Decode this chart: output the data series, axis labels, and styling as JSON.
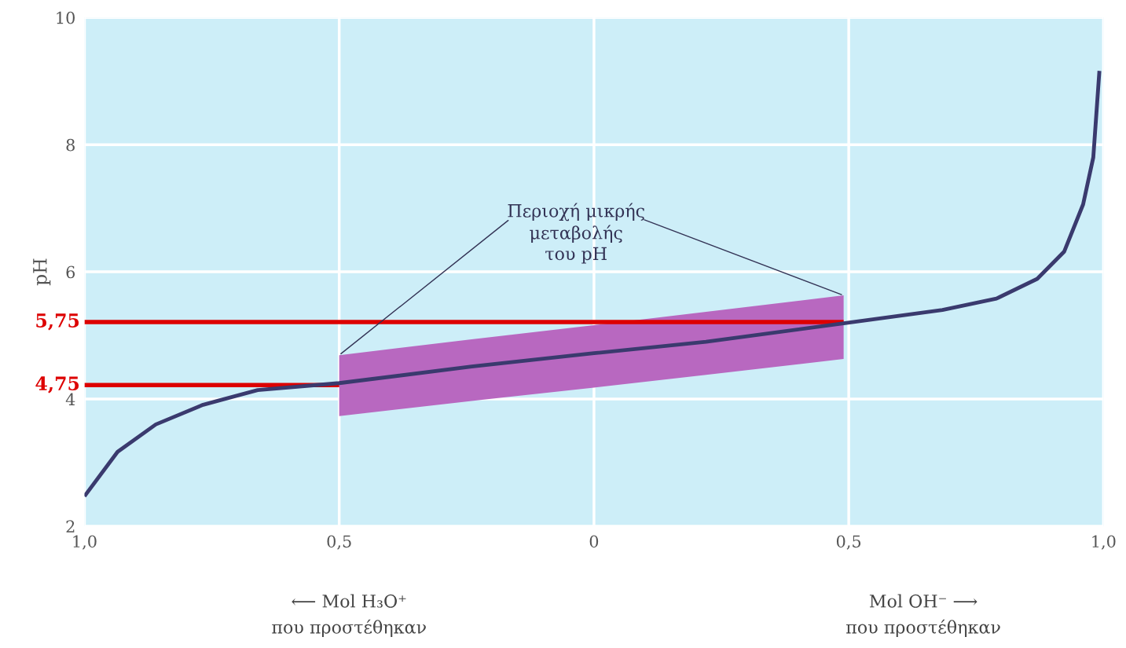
{
  "chart_data": {
    "type": "line",
    "ylabel": "pH",
    "xlim": [
      -1,
      1
    ],
    "ylim": [
      2,
      10
    ],
    "xticks": [
      {
        "value": -1,
        "label": "1,0"
      },
      {
        "value": -0.5,
        "label": "0,5"
      },
      0,
      {
        "value": 0.5,
        "label": "0,5"
      },
      {
        "value": 1,
        "label": "1,0"
      }
    ],
    "yticks": [
      2,
      4,
      6,
      8,
      10
    ],
    "grid": true,
    "legend": false,
    "series": [
      {
        "color": "#3a3a6e",
        "x": [
          -1,
          -0.935,
          -0.86,
          -0.767,
          -0.66,
          -0.5,
          -0.24,
          0,
          0.22,
          0.49,
          0.684,
          0.79,
          0.87,
          0.923,
          0.96,
          0.98,
          0.992
        ],
        "values": [
          2.47,
          3.17,
          3.6,
          3.91,
          4.14,
          4.25,
          4.51,
          4.72,
          4.9,
          5.19,
          5.4,
          5.58,
          5.89,
          6.32,
          7.06,
          7.8,
          9.16
        ],
        "lower": [
          null,
          null,
          null,
          null,
          null,
          3.73,
          3.97,
          4.18,
          4.38,
          4.63,
          null,
          null,
          null,
          null,
          null,
          null,
          null
        ],
        "upper": [
          null,
          null,
          null,
          null,
          null,
          4.69,
          4.94,
          5.16,
          5.37,
          5.63,
          null,
          null,
          null,
          null,
          null,
          null,
          null
        ]
      },
      {
        "name": "5,75",
        "color": "#dd0000",
        "x": [
          -1,
          0.49
        ],
        "values": [
          5.21,
          5.21
        ]
      },
      {
        "name": "4,75",
        "color": "#dd0000",
        "x": [
          -1,
          -0.5
        ],
        "values": [
          4.22,
          4.22
        ]
      }
    ],
    "annotations": [
      {
        "text": "Περιοχή μικρής\nμεταβολής\nτου pH",
        "x": -0.5,
        "y": 4.69
      },
      "⟵ Mol H₃O⁺\nπου προστέθηκαν",
      "Mol OH⁻ ⟶\nπου προστέθηκαν"
    ]
  }
}
